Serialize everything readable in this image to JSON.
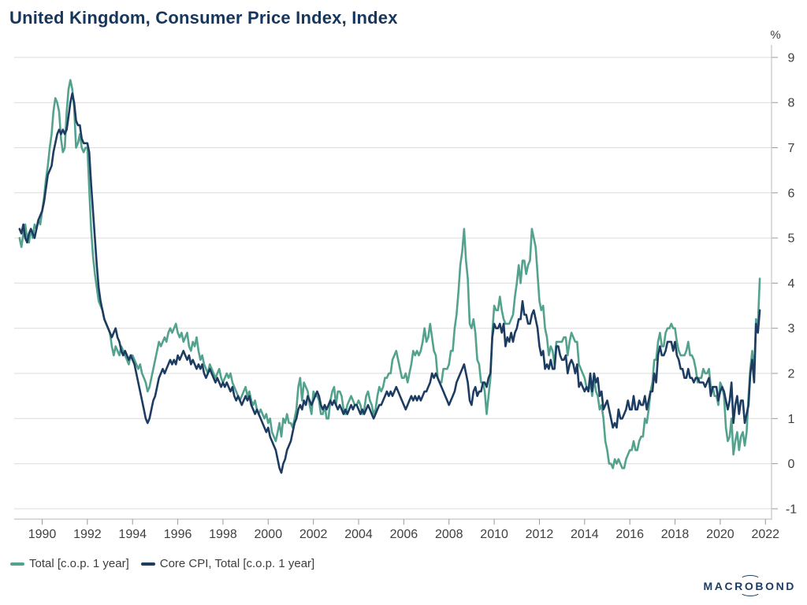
{
  "title": "United Kingdom, Consumer Price Index, Index",
  "y_axis_unit": "%",
  "branding": {
    "logo_prefix": "MACR",
    "logo_o": "O",
    "logo_suffix": "BOND"
  },
  "colors": {
    "total_line": "#53a28e",
    "core_line": "#1d3c62",
    "grid": "#dcdcdc",
    "axis": "#c4c4c4",
    "tick": "#9a9a9a",
    "tick_text": "#404040",
    "title_text": "#16365c"
  },
  "chart_data": {
    "type": "line",
    "title": "United Kingdom, Consumer Price Index, Index",
    "xlabel": "",
    "ylabel": "%",
    "axis_side": "right",
    "grid": "horizontal",
    "legend_position": "bottom-left",
    "frequency": "monthly",
    "x_start_year": 1989,
    "x_ticks": [
      1990,
      1992,
      1994,
      1996,
      1998,
      2000,
      2002,
      2004,
      2006,
      2008,
      2010,
      2012,
      2014,
      2016,
      2018,
      2020,
      2022
    ],
    "y_ticks": [
      -1,
      0,
      1,
      2,
      3,
      4,
      5,
      6,
      7,
      8,
      9
    ],
    "ylim": [
      -1.25,
      9.25
    ],
    "xlim": [
      1988.75,
      2022.45
    ],
    "series": [
      {
        "name": "Total [c.o.p. 1 year]",
        "color": "#53a28e",
        "values": [
          5.0,
          4.8,
          5.1,
          5.3,
          5.0,
          4.9,
          5.2,
          5.0,
          5.3,
          5.2,
          5.4,
          5.3,
          5.6,
          5.9,
          6.3,
          6.6,
          7.0,
          7.3,
          7.8,
          8.1,
          8.0,
          7.8,
          7.2,
          6.9,
          7.0,
          7.8,
          8.3,
          8.5,
          8.3,
          7.9,
          7.0,
          7.1,
          7.3,
          7.0,
          6.9,
          7.0,
          7.0,
          6.1,
          5.2,
          4.6,
          4.2,
          3.9,
          3.6,
          3.5,
          3.4,
          3.2,
          3.1,
          3.0,
          2.9,
          2.6,
          2.4,
          2.6,
          2.5,
          2.4,
          2.6,
          2.5,
          2.4,
          2.3,
          2.2,
          2.4,
          2.4,
          2.3,
          2.2,
          2.1,
          2.2,
          2.0,
          1.9,
          1.8,
          1.6,
          1.7,
          1.9,
          2.1,
          2.3,
          2.5,
          2.7,
          2.6,
          2.7,
          2.8,
          2.7,
          2.9,
          3.0,
          2.9,
          3.0,
          3.1,
          2.9,
          2.8,
          2.9,
          2.7,
          2.8,
          2.9,
          2.6,
          2.5,
          2.7,
          2.6,
          2.8,
          2.5,
          2.3,
          2.4,
          2.2,
          2.1,
          2.0,
          2.2,
          2.1,
          2.0,
          1.9,
          2.0,
          2.1,
          1.9,
          1.8,
          1.9,
          2.0,
          1.9,
          2.0,
          1.8,
          1.7,
          1.6,
          1.5,
          1.4,
          1.5,
          1.6,
          1.7,
          1.5,
          1.6,
          1.4,
          1.3,
          1.4,
          1.2,
          1.1,
          1.2,
          1.1,
          1.0,
          1.1,
          0.9,
          1.0,
          0.7,
          0.6,
          0.5,
          0.7,
          0.9,
          0.6,
          1.0,
          0.9,
          1.1,
          0.9,
          0.9,
          0.8,
          1.0,
          1.2,
          1.7,
          1.9,
          1.4,
          1.8,
          1.7,
          1.6,
          1.3,
          1.1,
          1.6,
          1.5,
          1.5,
          1.4,
          1.1,
          1.1,
          1.3,
          1.0,
          1.0,
          1.4,
          1.6,
          1.7,
          1.3,
          1.6,
          1.6,
          1.5,
          1.2,
          1.1,
          1.3,
          1.4,
          1.5,
          1.4,
          1.3,
          1.3,
          1.4,
          1.3,
          1.1,
          1.2,
          1.5,
          1.6,
          1.4,
          1.3,
          1.1,
          1.2,
          1.5,
          1.7,
          1.6,
          1.7,
          1.9,
          1.9,
          2.0,
          2.0,
          2.3,
          2.4,
          2.5,
          2.3,
          2.1,
          1.9,
          1.9,
          2.0,
          1.8,
          2.0,
          2.2,
          2.5,
          2.4,
          2.5,
          2.4,
          2.5,
          2.7,
          3.0,
          2.7,
          2.8,
          3.1,
          2.8,
          2.5,
          2.4,
          1.9,
          1.8,
          1.8,
          2.1,
          2.1,
          2.1,
          2.2,
          2.5,
          2.5,
          3.0,
          3.3,
          3.8,
          4.4,
          4.7,
          5.2,
          4.5,
          4.1,
          3.1,
          3.0,
          3.2,
          2.9,
          2.3,
          2.2,
          1.8,
          1.8,
          1.6,
          1.1,
          1.5,
          1.9,
          2.9,
          3.5,
          3.4,
          3.4,
          3.7,
          3.4,
          3.2,
          3.1,
          3.1,
          3.1,
          3.2,
          3.3,
          3.7,
          4.0,
          4.4,
          4.0,
          4.5,
          4.5,
          4.2,
          4.4,
          4.5,
          5.2,
          5.0,
          4.8,
          4.2,
          3.6,
          3.4,
          3.5,
          3.0,
          2.8,
          2.4,
          2.6,
          2.5,
          2.2,
          2.7,
          2.7,
          2.7,
          2.7,
          2.8,
          2.8,
          2.4,
          2.7,
          2.9,
          2.8,
          2.7,
          2.7,
          2.2,
          2.1,
          2.0,
          1.9,
          1.7,
          1.6,
          1.8,
          1.5,
          1.9,
          1.6,
          1.5,
          1.2,
          1.3,
          1.0,
          0.5,
          0.3,
          0.0,
          0.0,
          -0.1,
          0.1,
          0.0,
          0.1,
          0.0,
          -0.1,
          -0.1,
          0.1,
          0.2,
          0.3,
          0.3,
          0.5,
          0.3,
          0.3,
          0.5,
          0.6,
          0.6,
          1.0,
          0.9,
          1.2,
          1.6,
          1.8,
          2.3,
          2.3,
          2.7,
          2.9,
          2.6,
          2.6,
          2.9,
          3.0,
          3.0,
          3.1,
          3.0,
          3.0,
          2.7,
          2.5,
          2.4,
          2.4,
          2.4,
          2.5,
          2.7,
          2.4,
          2.4,
          2.3,
          2.1,
          1.8,
          1.9,
          1.9,
          2.1,
          2.0,
          2.0,
          2.1,
          1.7,
          1.7,
          1.5,
          1.5,
          1.3,
          1.8,
          1.7,
          1.5,
          0.8,
          0.5,
          0.6,
          1.0,
          0.2,
          0.5,
          0.7,
          0.3,
          0.6,
          0.7,
          0.4,
          0.7,
          1.5,
          2.1,
          2.5,
          2.0,
          3.2,
          3.1,
          4.1
        ]
      },
      {
        "name": "Core CPI, Total [c.o.p. 1 year]",
        "color": "#1d3c62",
        "values": [
          5.2,
          5.1,
          5.3,
          5.0,
          4.9,
          5.1,
          5.2,
          5.1,
          5.0,
          5.2,
          5.4,
          5.5,
          5.6,
          5.8,
          6.1,
          6.4,
          6.5,
          6.6,
          6.9,
          7.1,
          7.3,
          7.4,
          7.3,
          7.4,
          7.3,
          7.4,
          7.7,
          8.0,
          8.2,
          8.0,
          7.6,
          7.5,
          7.5,
          7.2,
          7.1,
          7.1,
          7.1,
          6.9,
          6.2,
          5.6,
          5.0,
          4.4,
          3.9,
          3.6,
          3.4,
          3.2,
          3.1,
          3.0,
          2.9,
          2.8,
          2.9,
          3.0,
          2.8,
          2.7,
          2.5,
          2.4,
          2.5,
          2.4,
          2.3,
          2.4,
          2.3,
          2.2,
          2.0,
          1.8,
          1.6,
          1.4,
          1.2,
          1.0,
          0.9,
          1.0,
          1.2,
          1.4,
          1.5,
          1.7,
          1.9,
          2.0,
          2.1,
          2.0,
          2.1,
          2.2,
          2.3,
          2.2,
          2.3,
          2.2,
          2.4,
          2.3,
          2.4,
          2.5,
          2.4,
          2.3,
          2.4,
          2.2,
          2.3,
          2.2,
          2.1,
          2.2,
          2.1,
          2.2,
          2.0,
          1.9,
          2.0,
          2.1,
          2.0,
          1.9,
          1.8,
          1.9,
          1.8,
          1.7,
          1.8,
          1.7,
          1.8,
          1.7,
          1.6,
          1.7,
          1.5,
          1.4,
          1.5,
          1.4,
          1.3,
          1.4,
          1.5,
          1.4,
          1.5,
          1.3,
          1.2,
          1.1,
          1.2,
          1.1,
          1.0,
          0.9,
          0.8,
          0.7,
          0.8,
          0.6,
          0.5,
          0.4,
          0.3,
          0.1,
          -0.1,
          -0.2,
          0.0,
          0.1,
          0.3,
          0.4,
          0.5,
          0.7,
          0.9,
          1.0,
          1.2,
          1.3,
          1.2,
          1.4,
          1.3,
          1.5,
          1.4,
          1.3,
          1.4,
          1.5,
          1.6,
          1.5,
          1.3,
          1.2,
          1.3,
          1.2,
          1.3,
          1.4,
          1.3,
          1.4,
          1.3,
          1.2,
          1.3,
          1.2,
          1.1,
          1.2,
          1.1,
          1.2,
          1.3,
          1.2,
          1.3,
          1.3,
          1.2,
          1.1,
          1.2,
          1.1,
          1.2,
          1.3,
          1.2,
          1.1,
          1.0,
          1.1,
          1.2,
          1.3,
          1.3,
          1.4,
          1.5,
          1.6,
          1.5,
          1.6,
          1.5,
          1.6,
          1.7,
          1.6,
          1.5,
          1.4,
          1.3,
          1.2,
          1.3,
          1.4,
          1.5,
          1.4,
          1.5,
          1.4,
          1.5,
          1.4,
          1.5,
          1.6,
          1.6,
          1.7,
          1.8,
          2.0,
          1.9,
          2.0,
          1.9,
          1.8,
          1.7,
          1.6,
          1.5,
          1.4,
          1.3,
          1.4,
          1.5,
          1.6,
          1.8,
          1.9,
          2.0,
          2.1,
          2.2,
          2.0,
          1.8,
          1.4,
          1.3,
          1.6,
          1.7,
          1.5,
          1.6,
          1.6,
          1.8,
          1.8,
          1.7,
          1.9,
          2.0,
          2.8,
          3.1,
          3.0,
          3.0,
          3.1,
          2.9,
          3.1,
          2.6,
          2.8,
          2.7,
          2.9,
          2.7,
          2.9,
          3.0,
          3.2,
          3.2,
          3.6,
          3.3,
          3.3,
          3.1,
          3.1,
          3.3,
          3.4,
          3.2,
          3.0,
          2.6,
          2.4,
          2.5,
          2.1,
          2.2,
          2.1,
          2.3,
          2.1,
          2.1,
          2.6,
          2.6,
          2.4,
          2.3,
          2.3,
          2.4,
          2.0,
          2.2,
          2.3,
          2.2,
          2.0,
          2.2,
          1.7,
          1.8,
          1.7,
          1.6,
          1.7,
          1.6,
          2.0,
          1.6,
          2.0,
          1.8,
          1.9,
          1.5,
          1.6,
          1.2,
          1.3,
          1.4,
          1.2,
          1.0,
          0.8,
          0.9,
          0.8,
          1.2,
          1.0,
          1.0,
          1.1,
          1.2,
          1.4,
          1.2,
          1.2,
          1.5,
          1.2,
          1.2,
          1.4,
          1.3,
          1.3,
          1.5,
          1.2,
          1.4,
          1.6,
          1.6,
          2.0,
          1.8,
          2.4,
          2.6,
          2.4,
          2.4,
          2.5,
          2.7,
          2.7,
          2.7,
          2.5,
          2.7,
          2.4,
          2.3,
          2.1,
          2.1,
          1.9,
          1.9,
          2.1,
          1.9,
          1.9,
          1.8,
          1.9,
          1.9,
          1.8,
          1.8,
          1.8,
          1.7,
          1.8,
          1.9,
          1.5,
          1.7,
          1.7,
          1.7,
          1.4,
          1.6,
          1.7,
          1.6,
          1.4,
          1.2,
          1.4,
          1.8,
          0.9,
          1.3,
          1.5,
          1.1,
          1.4,
          1.4,
          0.9,
          1.1,
          1.3,
          2.0,
          2.3,
          1.8,
          3.1,
          2.9,
          3.4
        ]
      }
    ]
  }
}
